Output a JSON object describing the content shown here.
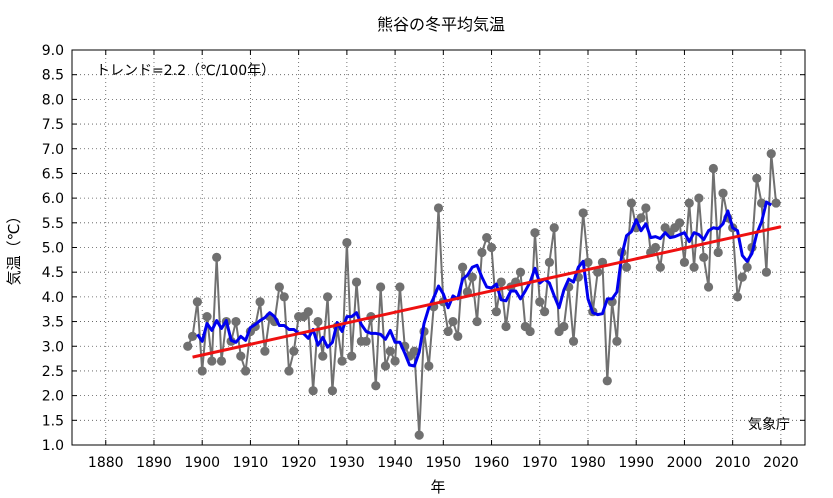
{
  "chart_data": {
    "type": "line",
    "title": "熊谷の冬平均気温",
    "xlabel": "年",
    "ylabel": "気温（℃）",
    "xlim": [
      1873,
      2025
    ],
    "ylim": [
      1.0,
      9.0
    ],
    "x_ticks": [
      1880,
      1890,
      1900,
      1910,
      1920,
      1930,
      1940,
      1950,
      1960,
      1970,
      1980,
      1990,
      2000,
      2010,
      2020
    ],
    "y_ticks": [
      "1.0",
      "1.5",
      "2.0",
      "2.5",
      "3.0",
      "3.5",
      "4.0",
      "4.5",
      "5.0",
      "5.5",
      "6.0",
      "6.5",
      "7.0",
      "7.5",
      "8.0",
      "8.5",
      "9.0"
    ],
    "grid": true,
    "trend_label": "トレンド=2.2（℃/100年）",
    "source_label": "気象庁",
    "colors": {
      "annual": "#707070",
      "moving_average": "#0000ee",
      "trend": "#ee1111"
    },
    "series": [
      {
        "kind": "annual",
        "x_start": 1897,
        "values": [
          3.0,
          3.2,
          3.9,
          2.5,
          3.6,
          2.7,
          4.8,
          2.7,
          3.5,
          3.1,
          3.5,
          2.8,
          2.5,
          3.3,
          3.4,
          3.9,
          2.9,
          3.6,
          3.5,
          4.2,
          4.0,
          2.5,
          2.9,
          3.6,
          3.6,
          3.7,
          2.1,
          3.5,
          2.8,
          4.0,
          2.1,
          3.4,
          2.7,
          5.1,
          2.8,
          4.3,
          3.1,
          3.1,
          3.6,
          2.2,
          4.2,
          2.6,
          2.9,
          2.7,
          4.2,
          3.0,
          2.8,
          2.9,
          1.2,
          3.3,
          2.6,
          3.8,
          5.8,
          3.9,
          3.3,
          3.5,
          3.2,
          4.6,
          4.1,
          4.4,
          3.5,
          4.9,
          5.2,
          5.0,
          3.7,
          4.3,
          3.4,
          4.2,
          4.3,
          4.5,
          3.4,
          3.3,
          5.3,
          3.9,
          3.7,
          4.7,
          5.4,
          3.3,
          3.4,
          4.2,
          3.1,
          4.4,
          5.7,
          4.7,
          3.7,
          4.5,
          4.7,
          2.3,
          3.9,
          3.1,
          4.9,
          4.6,
          5.9,
          5.4,
          5.6,
          5.8,
          4.9,
          5.0,
          4.6,
          5.4,
          5.3,
          5.4,
          5.5,
          4.7,
          5.9,
          4.6,
          6.0,
          4.8,
          4.2,
          6.6,
          4.9,
          6.1,
          5.6,
          5.4,
          4.0,
          4.4,
          4.6,
          5.0,
          6.4,
          5.9,
          4.5,
          6.9,
          5.9
        ]
      },
      {
        "kind": "moving_average",
        "x_start": 1899,
        "values": [
          3.24,
          3.1,
          3.46,
          3.32,
          3.52,
          3.36,
          3.52,
          3.12,
          3.08,
          3.2,
          3.12,
          3.38,
          3.44,
          3.52,
          3.58,
          3.68,
          3.6,
          3.42,
          3.42,
          3.34,
          3.34,
          3.26,
          3.26,
          3.16,
          3.34,
          3.02,
          3.18,
          2.98,
          3.08,
          3.48,
          3.3,
          3.6,
          3.6,
          3.68,
          3.44,
          3.3,
          3.26,
          3.26,
          3.24,
          3.14,
          3.32,
          3.08,
          3.08,
          2.86,
          2.62,
          2.6,
          2.88,
          3.46,
          3.78,
          3.98,
          4.22,
          4.06,
          3.78,
          4.02,
          3.96,
          4.36,
          4.44,
          4.6,
          4.64,
          4.4,
          4.2,
          4.18,
          4.26,
          3.94,
          3.92,
          4.12,
          4.12,
          3.96,
          4.12,
          4.3,
          4.58,
          4.28,
          4.36,
          4.28,
          4.02,
          3.78,
          4.14,
          4.36,
          4.3,
          4.6,
          4.72,
          3.96,
          3.68,
          3.64,
          3.66,
          3.96,
          3.96,
          4.1,
          4.84,
          5.24,
          5.32,
          5.56,
          5.34,
          5.48,
          5.2,
          5.22,
          5.18,
          5.3,
          5.2,
          5.22,
          5.26,
          5.3,
          5.12,
          5.3,
          5.26,
          5.16,
          5.34,
          5.4,
          5.38,
          5.48,
          5.74,
          5.4,
          5.34,
          4.84,
          4.72,
          4.88,
          5.28,
          5.52,
          5.92,
          5.86
        ]
      },
      {
        "kind": "trend",
        "x": [
          1898,
          2020
        ],
        "values": [
          2.78,
          5.42
        ]
      }
    ]
  }
}
